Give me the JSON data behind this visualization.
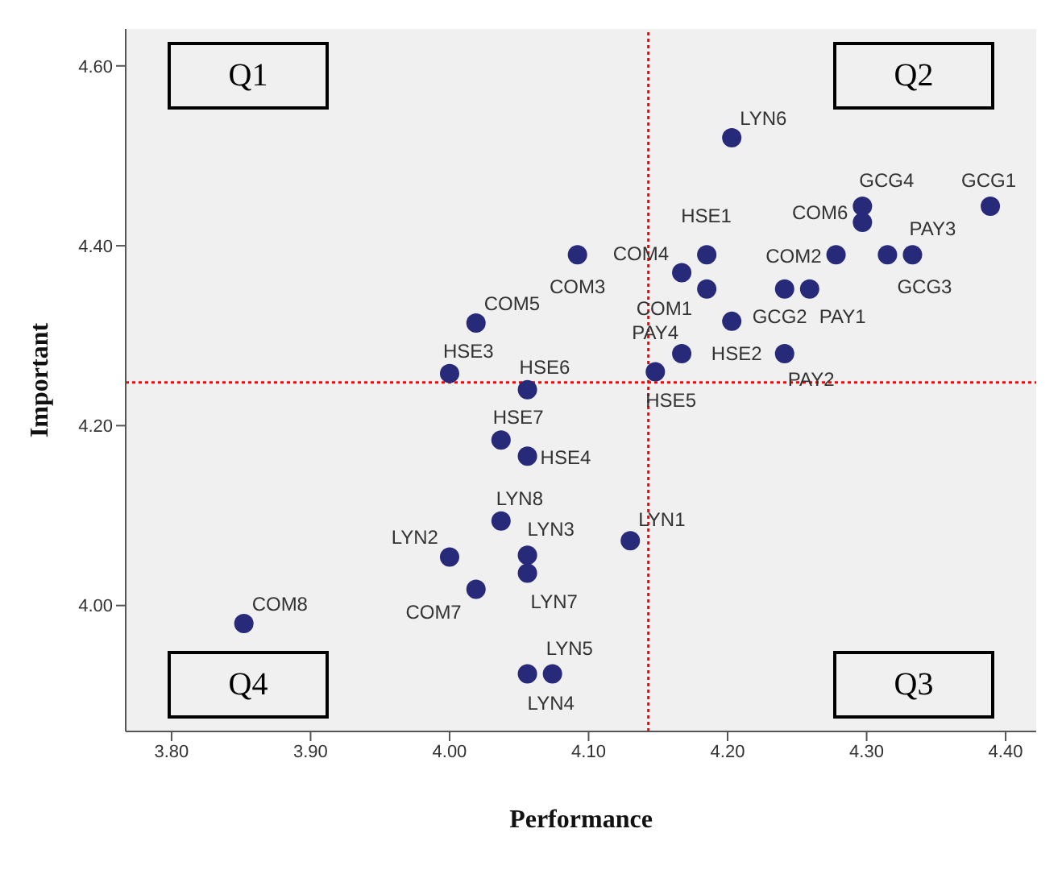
{
  "chart_data": {
    "type": "scatter",
    "xlabel": "Performance",
    "ylabel": "Important",
    "xlim": [
      3.767,
      4.422
    ],
    "xticks": [
      {
        "value": 3.8,
        "label": "3.80"
      },
      {
        "value": 3.9,
        "label": "3.90"
      },
      {
        "value": 4.0,
        "label": "4.00"
      },
      {
        "value": 4.1,
        "label": "4.10"
      },
      {
        "value": 4.2,
        "label": "4.20"
      },
      {
        "value": 4.3,
        "label": "4.30"
      },
      {
        "value": 4.4,
        "label": "4.40"
      }
    ],
    "ylim": [
      3.86,
      4.641
    ],
    "yticks": [
      {
        "value": 4.0,
        "label": "4.00"
      },
      {
        "value": 4.2,
        "label": "4.20"
      },
      {
        "value": 4.4,
        "label": "4.40"
      },
      {
        "value": 4.6,
        "label": "4.60"
      }
    ],
    "x": [
      4.203,
      4.389,
      4.297,
      4.297,
      4.333,
      4.315,
      4.278,
      4.092,
      4.167,
      4.185,
      4.185,
      4.241,
      4.259,
      4.203,
      4.167,
      4.241,
      4.148,
      4.019,
      4.0,
      4.056,
      4.037,
      4.056,
      4.037,
      4.056,
      4.056,
      4.0,
      4.019,
      3.852,
      4.13,
      4.074,
      4.056
    ],
    "series": [
      {
        "color": "#262a78",
        "values": [
          4.52,
          4.444,
          4.444,
          4.426,
          4.39,
          4.39,
          4.39,
          4.39,
          4.37,
          4.39,
          4.352,
          4.352,
          4.352,
          4.316,
          4.28,
          4.28,
          4.26,
          4.314,
          4.258,
          4.24,
          4.184,
          4.166,
          4.094,
          4.056,
          4.036,
          4.054,
          4.018,
          3.98,
          4.072,
          3.924,
          3.924
        ]
      }
    ],
    "marker": "circle",
    "grid": false,
    "legend": false,
    "ref_lines": [
      {
        "axis": "x",
        "value": 4.143,
        "color": "#ff0000",
        "line_style": "dotted"
      },
      {
        "axis": "y",
        "value": 4.248,
        "color": "#ff0000",
        "line_style": "dotted"
      }
    ],
    "annotations": [
      "Q1",
      "Q2",
      "Q3",
      "Q4",
      {
        "text": "LYN6",
        "x": 4.203,
        "y": 4.52
      },
      {
        "text": "GCG1",
        "x": 4.389,
        "y": 4.444
      },
      {
        "text": "GCG4",
        "x": 4.297,
        "y": 4.444
      },
      {
        "text": "COM6",
        "x": 4.297,
        "y": 4.426
      },
      {
        "text": "PAY3",
        "x": 4.333,
        "y": 4.39
      },
      {
        "text": "GCG3",
        "x": 4.315,
        "y": 4.39
      },
      {
        "text": "COM2",
        "x": 4.278,
        "y": 4.39
      },
      {
        "text": "COM3",
        "x": 4.092,
        "y": 4.39
      },
      {
        "text": "COM4",
        "x": 4.167,
        "y": 4.37
      },
      {
        "text": "HSE1",
        "x": 4.185,
        "y": 4.39
      },
      {
        "text": "COM1",
        "x": 4.185,
        "y": 4.352
      },
      {
        "text": "GCG2",
        "x": 4.241,
        "y": 4.352
      },
      {
        "text": "PAY1",
        "x": 4.259,
        "y": 4.352
      },
      {
        "text": "HSE2",
        "x": 4.203,
        "y": 4.316
      },
      {
        "text": "PAY4",
        "x": 4.167,
        "y": 4.28
      },
      {
        "text": "PAY2",
        "x": 4.241,
        "y": 4.28
      },
      {
        "text": "HSE5",
        "x": 4.148,
        "y": 4.26
      },
      {
        "text": "COM5",
        "x": 4.019,
        "y": 4.314
      },
      {
        "text": "HSE3",
        "x": 4.0,
        "y": 4.258
      },
      {
        "text": "HSE6",
        "x": 4.056,
        "y": 4.24
      },
      {
        "text": "HSE7",
        "x": 4.037,
        "y": 4.184
      },
      {
        "text": "HSE4",
        "x": 4.056,
        "y": 4.166
      },
      {
        "text": "LYN8",
        "x": 4.037,
        "y": 4.094
      },
      {
        "text": "LYN3",
        "x": 4.056,
        "y": 4.056
      },
      {
        "text": "LYN7",
        "x": 4.056,
        "y": 4.036
      },
      {
        "text": "LYN2",
        "x": 4.0,
        "y": 4.054
      },
      {
        "text": "COM7",
        "x": 4.019,
        "y": 4.018
      },
      {
        "text": "COM8",
        "x": 3.852,
        "y": 3.98
      },
      {
        "text": "LYN1",
        "x": 4.13,
        "y": 4.072
      },
      {
        "text": "LYN5",
        "x": 4.074,
        "y": 3.924
      },
      {
        "text": "LYN4",
        "x": 4.056,
        "y": 3.924
      }
    ]
  }
}
